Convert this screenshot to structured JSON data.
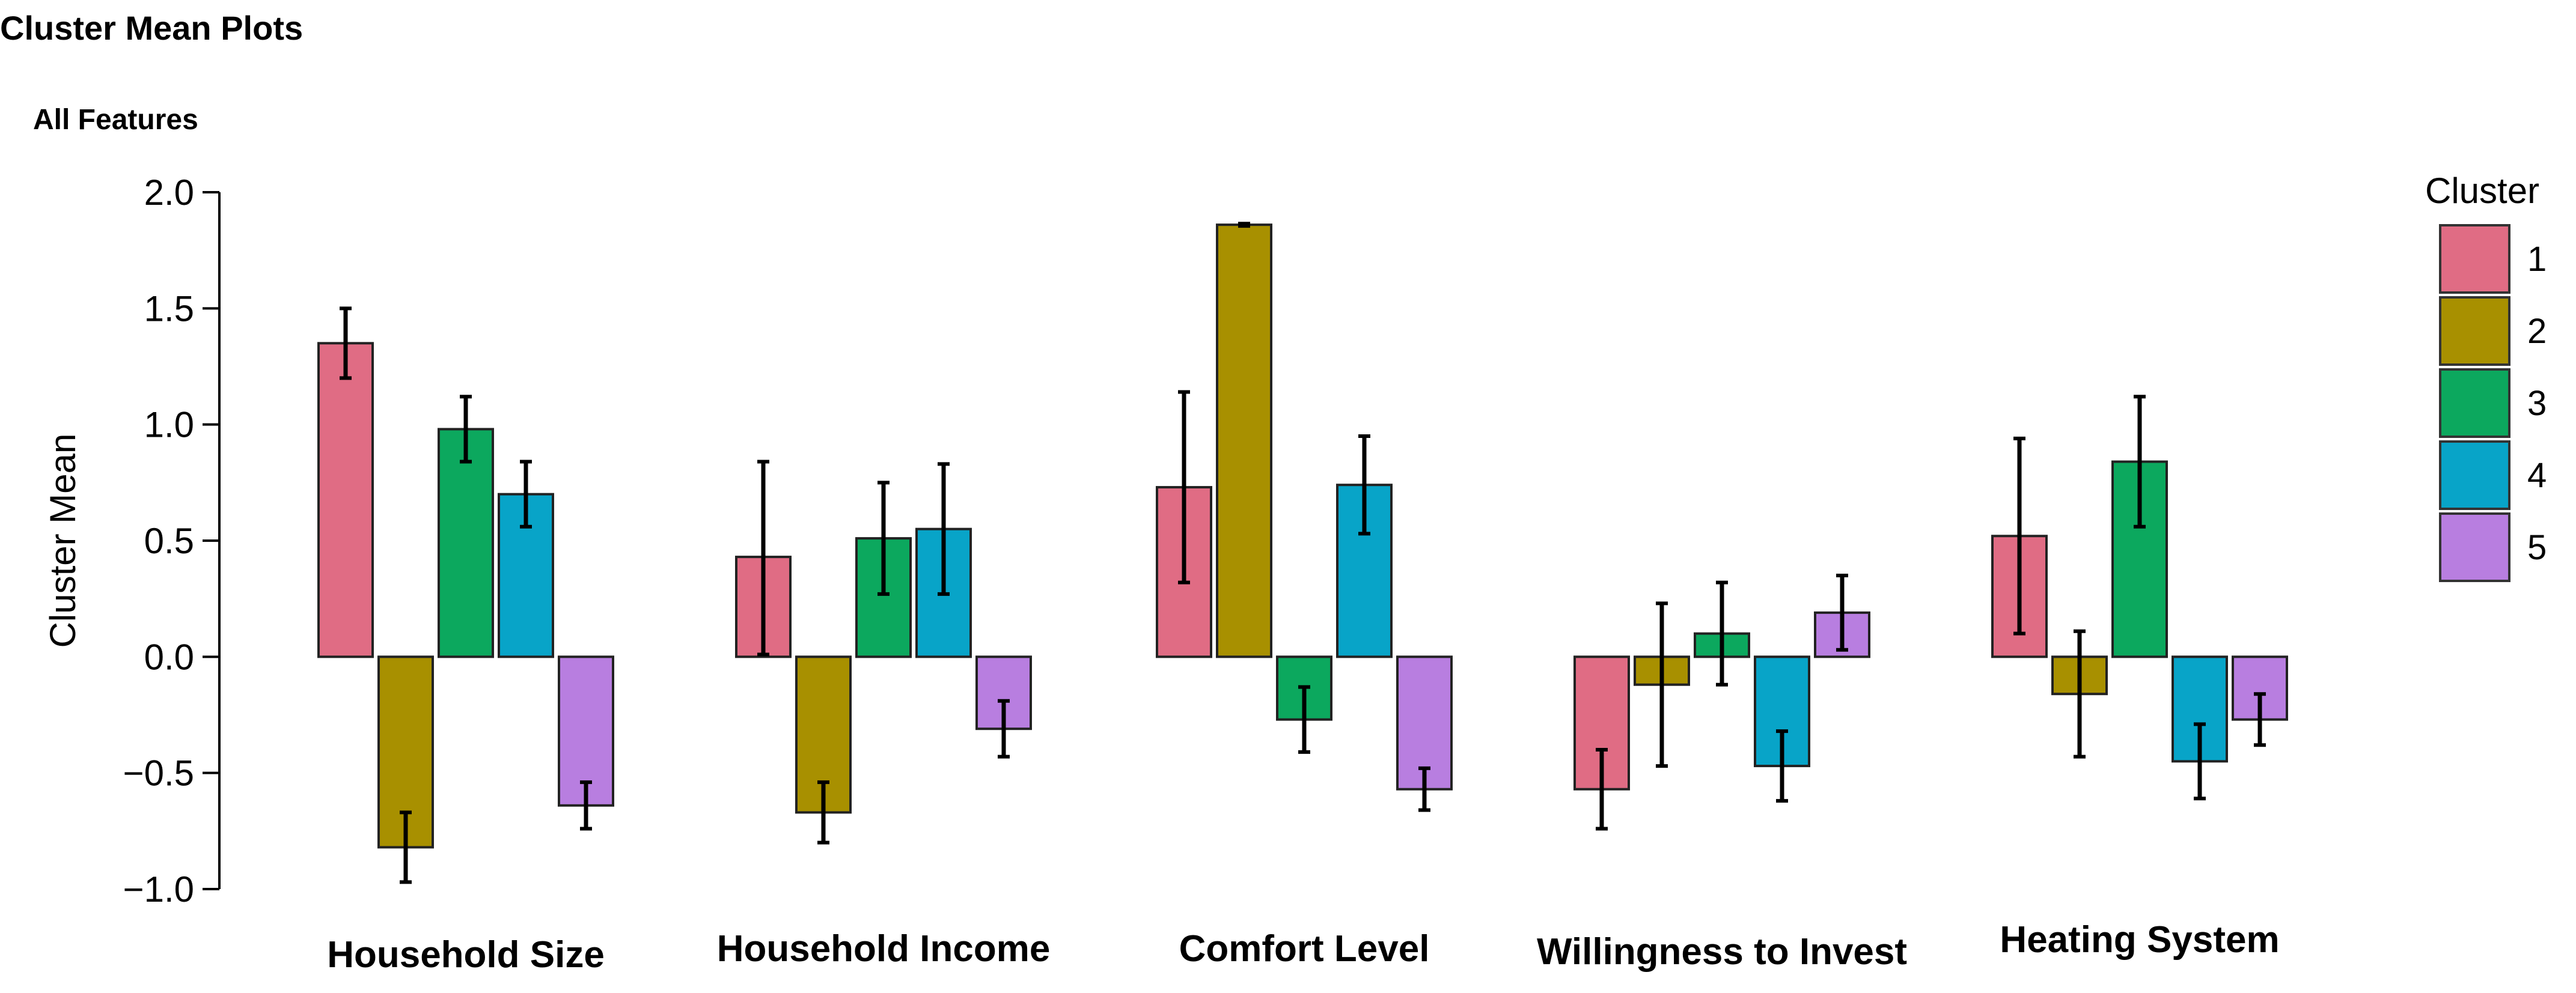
{
  "page": {
    "title": "Cluster Mean Plots",
    "subtitle": "All Features"
  },
  "chart_data": {
    "type": "bar",
    "title": "Cluster Mean Plots",
    "subtitle": "All Features",
    "xlabel": "",
    "ylabel": "Cluster Mean",
    "ylim": [
      -1.0,
      2.0
    ],
    "yticks": [
      "2.0",
      "1.5",
      "1.0",
      "0.5",
      "0.0",
      "−0.5",
      "−1.0"
    ],
    "ytick_values": [
      2.0,
      1.5,
      1.0,
      0.5,
      0.0,
      -0.5,
      -1.0
    ],
    "categories": [
      "Household Size",
      "Household Income",
      "Comfort Level",
      "Willingness to Invest",
      "Heating System"
    ],
    "legend": {
      "title": "Cluster",
      "position": "right"
    },
    "series": [
      {
        "name": "1",
        "color": "#e06c84",
        "values": [
          1.35,
          0.43,
          0.73,
          -0.57,
          0.52
        ],
        "err_low": [
          1.2,
          0.01,
          0.32,
          -0.74,
          0.1
        ],
        "err_high": [
          1.5,
          0.84,
          1.14,
          -0.4,
          0.94
        ]
      },
      {
        "name": "2",
        "color": "#a89000",
        "values": [
          -0.82,
          -0.67,
          1.86,
          -0.12,
          -0.16
        ],
        "err_low": [
          -0.97,
          -0.8,
          1.855,
          -0.47,
          -0.43
        ],
        "err_high": [
          -0.67,
          -0.54,
          1.865,
          0.23,
          0.11
        ]
      },
      {
        "name": "3",
        "color": "#0ca85e",
        "values": [
          0.98,
          0.51,
          -0.27,
          0.1,
          0.84
        ],
        "err_low": [
          0.84,
          0.27,
          -0.41,
          -0.12,
          0.56
        ],
        "err_high": [
          1.12,
          0.75,
          -0.13,
          0.32,
          1.12
        ]
      },
      {
        "name": "4",
        "color": "#08a4c8",
        "values": [
          0.7,
          0.55,
          0.74,
          -0.47,
          -0.45
        ],
        "err_low": [
          0.56,
          0.27,
          0.53,
          -0.62,
          -0.61
        ],
        "err_high": [
          0.84,
          0.83,
          0.95,
          -0.32,
          -0.29
        ]
      },
      {
        "name": "5",
        "color": "#b87ee0",
        "values": [
          -0.64,
          -0.31,
          -0.57,
          0.19,
          -0.27
        ],
        "err_low": [
          -0.74,
          -0.43,
          -0.66,
          0.03,
          -0.38
        ],
        "err_high": [
          -0.54,
          -0.19,
          -0.48,
          0.35,
          -0.16
        ]
      }
    ]
  }
}
